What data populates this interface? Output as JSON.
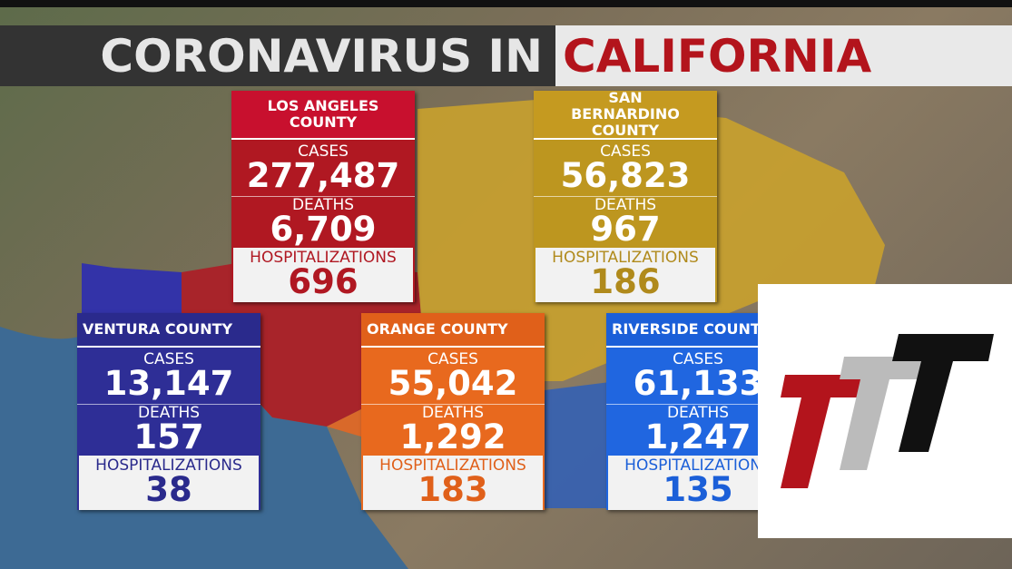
{
  "header": {
    "title_left": "CORONAVIRUS IN",
    "title_right": "CALIFORNIA"
  },
  "counties": [
    {
      "name": "LOS ANGELES COUNTY",
      "cases_label": "CASES",
      "cases": "277,487",
      "deaths_label": "DEATHS",
      "deaths": "6,709",
      "hosp_label": "HOSPITALIZATIONS",
      "hosp": "696"
    },
    {
      "name": "SAN BERNARDINO COUNTY",
      "cases_label": "CASES",
      "cases": "56,823",
      "deaths_label": "DEATHS",
      "deaths": "967",
      "hosp_label": "HOSPITALIZATIONS",
      "hosp": "186"
    },
    {
      "name": "VENTURA COUNTY",
      "cases_label": "CASES",
      "cases": "13,147",
      "deaths_label": "DEATHS",
      "deaths": "157",
      "hosp_label": "HOSPITALIZATIONS",
      "hosp": "38"
    },
    {
      "name": "ORANGE COUNTY",
      "cases_label": "CASES",
      "cases": "55,042",
      "deaths_label": "DEATHS",
      "deaths": "1,292",
      "hosp_label": "HOSPITALIZATIONS",
      "hosp": "183"
    },
    {
      "name": "RIVERSIDE COUNTY",
      "cases_label": "CASES",
      "cases": "61,133",
      "deaths_label": "DEATHS",
      "deaths": "1,247",
      "hosp_label": "HOSPITALIZATIONS",
      "hosp": "135"
    }
  ]
}
